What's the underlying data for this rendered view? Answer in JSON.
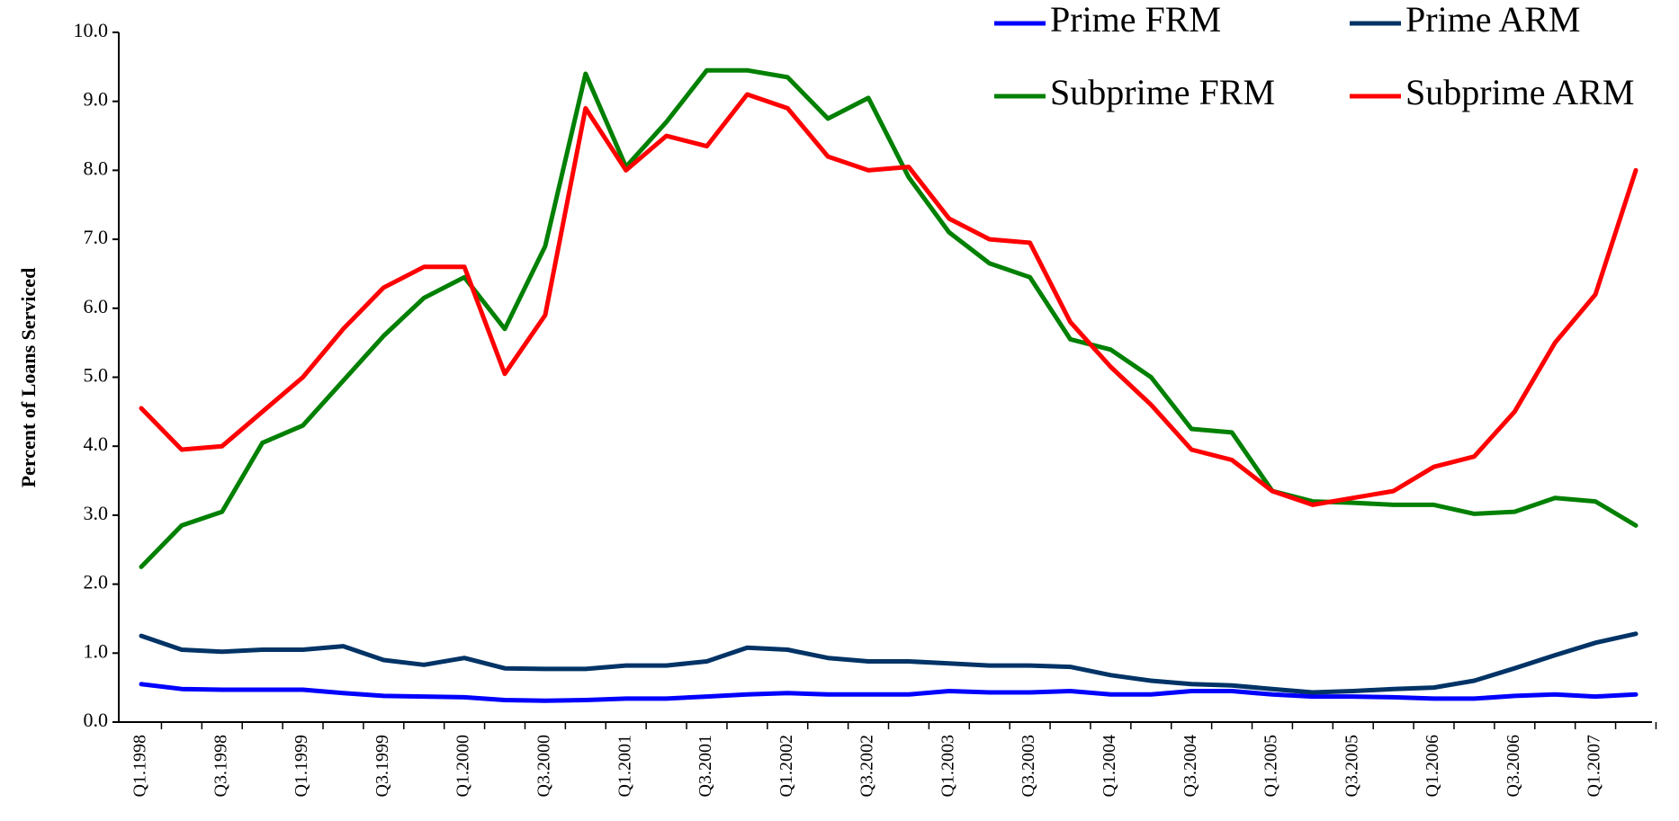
{
  "chart_data": {
    "type": "line",
    "y_label": "Percent of Loans Serviced",
    "categories": [
      "Q1.1998",
      null,
      "Q3.1998",
      null,
      "Q1.1999",
      null,
      "Q3.1999",
      null,
      "Q1.2000",
      null,
      "Q3.2000",
      null,
      "Q1.2001",
      null,
      "Q3.2001",
      null,
      "Q1.2002",
      null,
      "Q3.2002",
      null,
      "Q1.2003",
      null,
      "Q3.2003",
      null,
      "Q1.2004",
      null,
      "Q3.2004",
      null,
      "Q1.2005",
      null,
      "Q3.2005",
      null,
      "Q1.2006",
      null,
      "Q3.2006",
      null,
      "Q1.2007",
      null
    ],
    "series": [
      {
        "name": "Prime FRM",
        "color": "#0000ff",
        "values": [
          0.55,
          0.48,
          0.47,
          0.47,
          0.47,
          0.42,
          0.38,
          0.37,
          0.36,
          0.32,
          0.31,
          0.32,
          0.34,
          0.34,
          0.37,
          0.4,
          0.42,
          0.4,
          0.4,
          0.4,
          0.45,
          0.43,
          0.43,
          0.45,
          0.4,
          0.4,
          0.45,
          0.45,
          0.4,
          0.37,
          0.37,
          0.36,
          0.34,
          0.34,
          0.38,
          0.4,
          0.37,
          0.4
        ]
      },
      {
        "name": "Prime ARM",
        "color": "#003366",
        "values": [
          1.25,
          1.05,
          1.02,
          1.05,
          1.05,
          1.1,
          0.9,
          0.83,
          0.93,
          0.78,
          0.77,
          0.77,
          0.82,
          0.82,
          0.88,
          1.08,
          1.05,
          0.93,
          0.88,
          0.88,
          0.85,
          0.82,
          0.82,
          0.8,
          0.68,
          0.6,
          0.55,
          0.53,
          0.48,
          0.43,
          0.45,
          0.48,
          0.5,
          0.6,
          0.78,
          0.97,
          1.15,
          1.28
        ]
      },
      {
        "name": "Subprime FRM",
        "color": "#008000",
        "values": [
          2.25,
          2.85,
          3.05,
          4.05,
          4.3,
          4.95,
          5.6,
          6.15,
          6.45,
          5.7,
          6.9,
          9.4,
          8.05,
          8.7,
          9.45,
          9.45,
          9.35,
          8.75,
          9.05,
          7.9,
          7.1,
          6.65,
          6.45,
          5.55,
          5.4,
          5.0,
          4.25,
          4.2,
          3.35,
          3.2,
          3.18,
          3.15,
          3.15,
          3.02,
          3.05,
          3.25,
          3.2,
          2.85
        ]
      },
      {
        "name": "Subprime ARM",
        "color": "#ff0000",
        "values": [
          4.55,
          3.95,
          4.0,
          4.5,
          5.0,
          5.7,
          6.3,
          6.6,
          6.6,
          5.05,
          5.9,
          8.9,
          8.0,
          8.5,
          8.35,
          9.1,
          8.9,
          8.2,
          8.0,
          8.05,
          7.3,
          7.0,
          6.95,
          5.8,
          5.15,
          4.6,
          3.95,
          3.8,
          3.35,
          3.15,
          3.25,
          3.35,
          3.7,
          3.85,
          4.5,
          5.5,
          6.2,
          8.0
        ]
      }
    ],
    "ylim": [
      0,
      10
    ],
    "yticks": [
      {
        "value": 0,
        "label": "0.0"
      },
      {
        "value": 1,
        "label": "1.0"
      },
      {
        "value": 2,
        "label": "2.0"
      },
      {
        "value": 3,
        "label": "3.0"
      },
      {
        "value": 4,
        "label": "4.0"
      },
      {
        "value": 5,
        "label": "5.0"
      },
      {
        "value": 6,
        "label": "6.0"
      },
      {
        "value": 7,
        "label": "7.0"
      },
      {
        "value": 8,
        "label": "8.0"
      },
      {
        "value": 9,
        "label": "9.0"
      },
      {
        "value": 10,
        "label": "10.0"
      }
    ],
    "grid": false,
    "legend": "top-right"
  }
}
